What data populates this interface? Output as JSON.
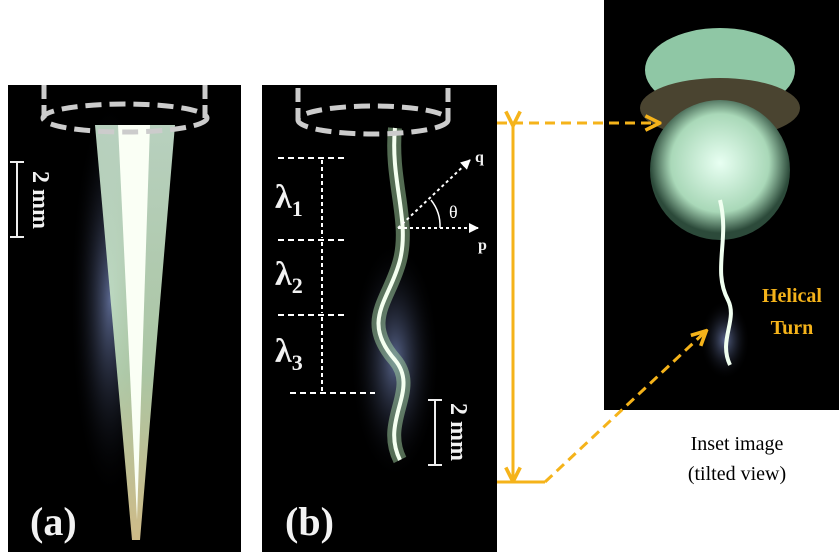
{
  "panel_a": {
    "label": "(a)",
    "scale": "2 mm"
  },
  "panel_b": {
    "label": "(b)",
    "scale": "2 mm",
    "wavelengths": [
      {
        "symbol": "λ",
        "sub": "1"
      },
      {
        "symbol": "λ",
        "sub": "2"
      },
      {
        "symbol": "λ",
        "sub": "3"
      }
    ],
    "axes": {
      "q": "q",
      "p": "p",
      "angle": "θ"
    }
  },
  "inset": {
    "annotation": [
      "Helical",
      "Turn"
    ],
    "caption": [
      "Inset image",
      "(tilted view)"
    ]
  }
}
